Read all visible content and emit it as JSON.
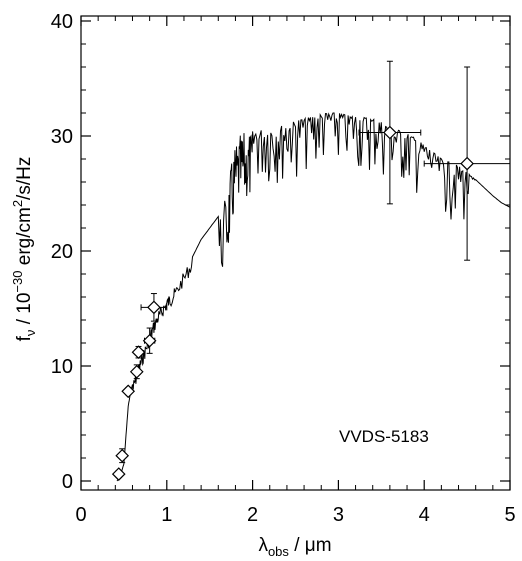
{
  "chart_data": {
    "type": "scatter",
    "xlabel": {
      "main": "λ",
      "sub": "obs",
      "rest": " / μm"
    },
    "ylabel": {
      "main": "f",
      "sub": "ν",
      "mid": " / 10",
      "sup1": "−30",
      "tail": " erg/cm",
      "sup2": "2",
      "end": "/s/Hz"
    },
    "xlim": [
      0,
      5
    ],
    "ylim": [
      0,
      40
    ],
    "xticks": [
      0,
      1,
      2,
      3,
      4,
      5
    ],
    "yticks": [
      0,
      10,
      20,
      30,
      40
    ],
    "annotation": "VVDS-5183",
    "grid": false,
    "series": [
      {
        "type": "line",
        "x": [
          0.42,
          0.46,
          0.5,
          0.55,
          0.58,
          0.62,
          0.66,
          0.7,
          0.75,
          0.8,
          0.85,
          0.9,
          0.95,
          1.0,
          1.05,
          1.1,
          1.2,
          1.3,
          1.4,
          1.5,
          1.6,
          1.7,
          1.75,
          1.8,
          1.85,
          1.9,
          1.95,
          2.0,
          2.1,
          2.2,
          2.3,
          2.4,
          2.5,
          2.6,
          2.7,
          2.8,
          2.9,
          3.0,
          3.1,
          3.2,
          3.3,
          3.4,
          3.5,
          3.6,
          3.7,
          3.8,
          3.9,
          4.0,
          4.1,
          4.2,
          4.3,
          4.4,
          4.5,
          4.6,
          4.7,
          4.8,
          4.9,
          5.0
        ],
        "y": [
          0.0,
          0.5,
          1.5,
          6.5,
          7.8,
          9.0,
          10.0,
          10.9,
          11.9,
          13.0,
          14.0,
          14.8,
          15.4,
          16.0,
          16.4,
          16.9,
          18.2,
          19.5,
          21.0,
          22.0,
          23.0,
          25.0,
          27.5,
          29.3,
          30.0,
          30.3,
          30.4,
          30.4,
          30.5,
          30.6,
          30.8,
          31.0,
          31.3,
          31.5,
          31.7,
          31.9,
          32.0,
          32.0,
          31.8,
          31.7,
          31.6,
          31.5,
          31.2,
          30.8,
          30.5,
          30.2,
          29.8,
          29.2,
          28.6,
          28.0,
          27.7,
          27.4,
          26.8,
          26.2,
          25.5,
          24.8,
          24.2,
          23.8
        ]
      },
      {
        "type": "scatter-errorbar",
        "points": [
          {
            "x": 0.44,
            "y": 0.6,
            "xerr": 0.03,
            "yerr": 0.3
          },
          {
            "x": 0.48,
            "y": 2.2,
            "xerr": 0.03,
            "yerr": 0.6
          },
          {
            "x": 0.55,
            "y": 7.8,
            "xerr": 0.03,
            "yerr": 0.3
          },
          {
            "x": 0.65,
            "y": 9.5,
            "xerr": 0.04,
            "yerr": 0.6
          },
          {
            "x": 0.67,
            "y": 11.2,
            "xerr": 0.04,
            "yerr": 0.5
          },
          {
            "x": 0.8,
            "y": 12.2,
            "xerr": 0.06,
            "yerr": 1.1
          },
          {
            "x": 0.85,
            "y": 15.1,
            "xerr": 0.15,
            "yerr": 1.2
          },
          {
            "x": 3.6,
            "y": 30.3,
            "xerr": 0.36,
            "yerr": 6.2
          },
          {
            "x": 4.5,
            "y": 27.6,
            "xerr": 0.5,
            "yerr": 8.4
          }
        ]
      }
    ]
  }
}
